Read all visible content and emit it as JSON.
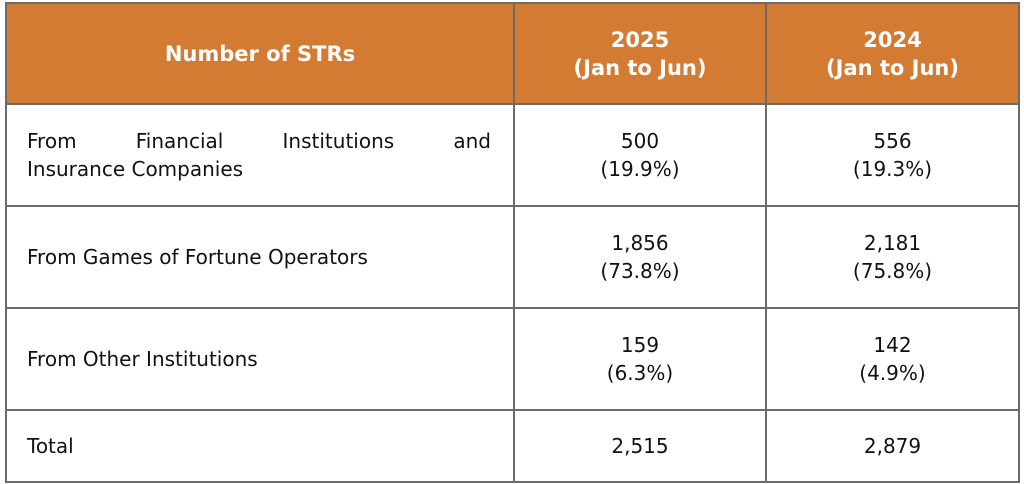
{
  "table": {
    "header": {
      "col1": "Number of STRs",
      "col2_year": "2025",
      "col2_period": "(Jan to Jun)",
      "col3_year": "2024",
      "col3_period": "(Jan to Jun)"
    },
    "rows": [
      {
        "label_line1": "From Financial Institutions and",
        "label_line2": "Insurance Companies",
        "v2025": "500",
        "p2025": "(19.9%)",
        "v2024": "556",
        "p2024": "(19.3%)"
      },
      {
        "label": "From Games of Fortune Operators",
        "v2025": "1,856",
        "p2025": "(73.8%)",
        "v2024": "2,181",
        "p2024": "(75.8%)"
      },
      {
        "label": "From Other Institutions",
        "v2025": "159",
        "p2025": "(6.3%)",
        "v2024": "142",
        "p2024": "(4.9%)"
      },
      {
        "label": "Total",
        "v2025": "2,515",
        "v2024": "2,879"
      }
    ],
    "colors": {
      "header_bg": "#d47b33",
      "header_text": "#ffffff",
      "border": "#6b6b6b"
    }
  }
}
